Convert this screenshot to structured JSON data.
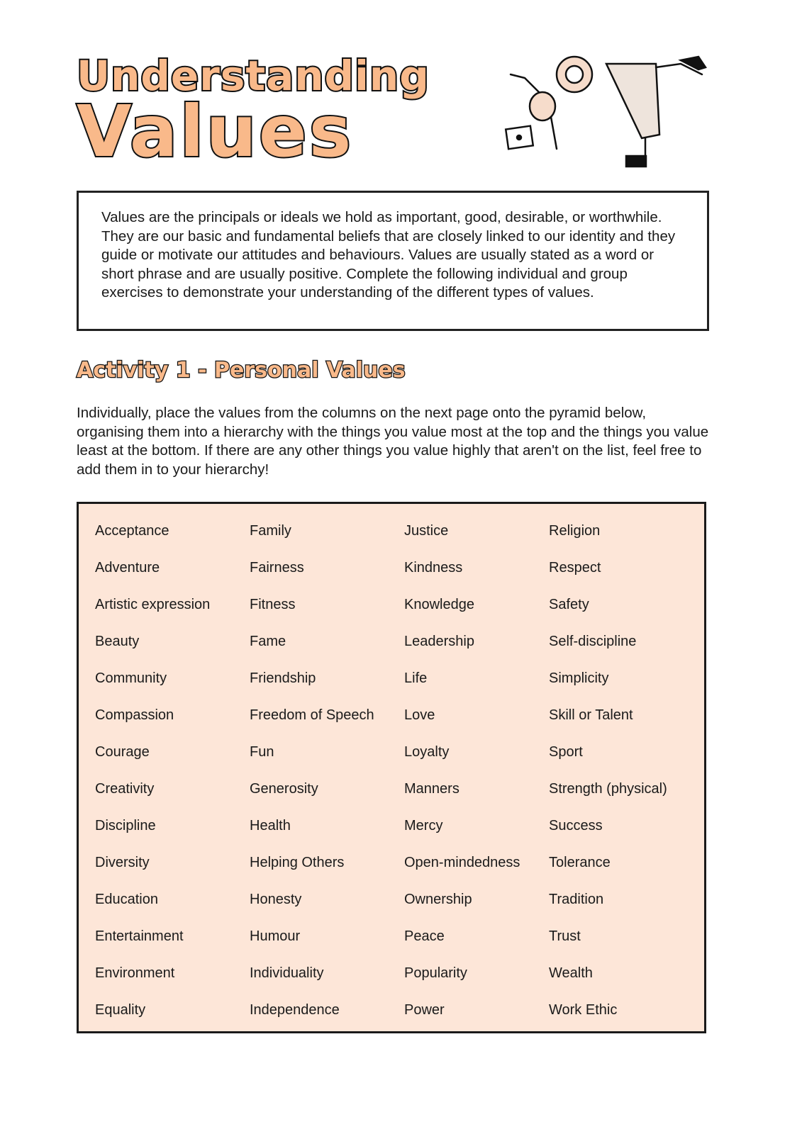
{
  "title": {
    "line1": "Understanding",
    "line2": "Values"
  },
  "intro": "Values are the principals or ideals we hold as important, good, desirable, or worthwhile. They are our basic and fundamental beliefs that are closely linked to our identity and they guide or motivate our attitudes and behaviours. Values are usually stated as a word or short phrase and are usually positive. Complete the following individual and group exercises to demonstrate your understanding of the different types of values.",
  "activity": {
    "heading": "Activity 1 - Personal Values",
    "instructions": "Individually, place the values from the columns on the next page onto the pyramid below, organising them  into a hierarchy with the things you value most at the top and the things you value least at the bottom. If there are any other things you value highly that aren't on the list, feel free to add them in to your hierarchy!"
  },
  "values_columns": [
    [
      "Acceptance",
      "Adventure",
      "Artistic expression",
      "Beauty",
      "Community",
      "Compassion",
      "Courage",
      "Creativity",
      "Discipline",
      "Diversity",
      "Education",
      "Entertainment",
      "Environment",
      "Equality"
    ],
    [
      "Family",
      "Fairness",
      "Fitness",
      "Fame",
      "Friendship",
      "Freedom of Speech",
      "Fun",
      "Generosity",
      "Health",
      "Helping Others",
      "Honesty",
      "Humour",
      "Individuality",
      "Independence"
    ],
    [
      "Justice",
      "Kindness",
      "Knowledge",
      "Leadership",
      "Life",
      "Love",
      "Loyalty",
      "Manners",
      "Mercy",
      "Open-mindedness",
      "Ownership",
      "Peace",
      "Popularity",
      "Power"
    ],
    [
      "Religion",
      "Respect",
      "Safety",
      "Self-discipline",
      "Simplicity",
      "Skill or Talent",
      "Sport",
      "Strength (physical)",
      "Success",
      "Tolerance",
      "Tradition",
      "Trust",
      "Wealth",
      "Work Ethic"
    ]
  ],
  "colors": {
    "accent": "#f9b98a",
    "box_fill": "#fde6d8",
    "outline": "#111111"
  }
}
